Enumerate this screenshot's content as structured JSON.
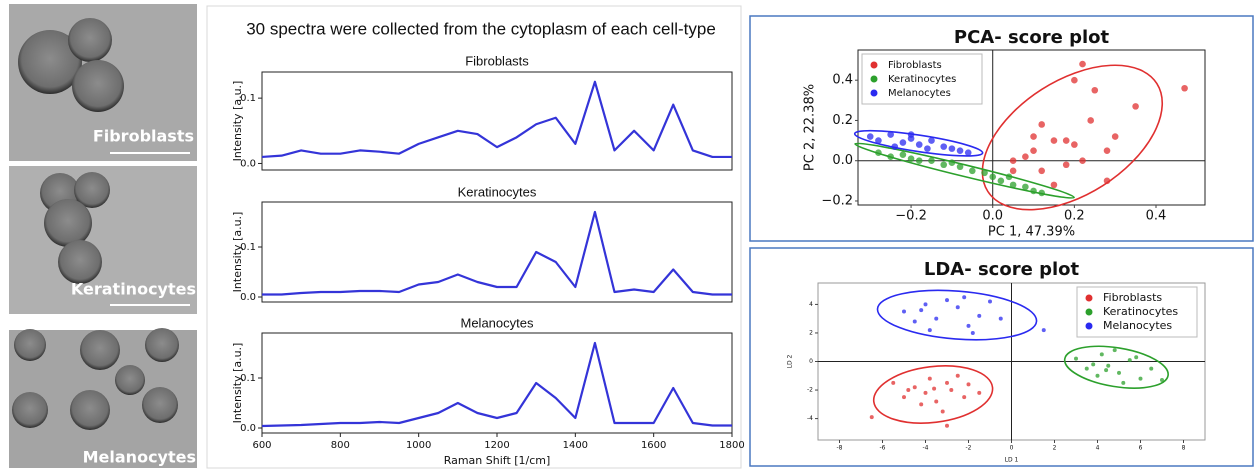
{
  "micrographs": [
    {
      "label": "Fibroblasts"
    },
    {
      "label": "Keratinocytes"
    },
    {
      "label": "Melanocytes"
    }
  ],
  "spectra_heading": "30 spectra were collected from the cytoplasm of each cell-type",
  "chart_data": [
    {
      "type": "line",
      "title": "Fibroblasts",
      "ylabel": "Intensity [a.u.]",
      "xlim": [
        600,
        1800
      ],
      "ylim": [
        -0.01,
        0.14
      ],
      "yticks": [
        {
          "value": 0,
          "label": "0.0"
        },
        0.1
      ],
      "x": [
        600,
        650,
        700,
        750,
        800,
        850,
        900,
        950,
        1000,
        1050,
        1100,
        1150,
        1200,
        1250,
        1300,
        1350,
        1400,
        1450,
        1500,
        1550,
        1600,
        1650,
        1700,
        1750,
        1800
      ],
      "series": [
        {
          "color": "#3434d8",
          "values": [
            0.01,
            0.012,
            0.02,
            0.015,
            0.015,
            0.02,
            0.018,
            0.015,
            0.03,
            0.04,
            0.05,
            0.045,
            0.025,
            0.04,
            0.06,
            0.07,
            0.03,
            0.125,
            0.02,
            0.05,
            0.02,
            0.09,
            0.02,
            0.01,
            0.01
          ]
        }
      ]
    },
    {
      "type": "line",
      "title": "Keratinocytes",
      "ylabel": "Intensity [a.u.]",
      "xlim": [
        600,
        1800
      ],
      "ylim": [
        -0.01,
        0.19
      ],
      "yticks": [
        {
          "value": 0,
          "label": "0.0"
        },
        0.1
      ],
      "x": [
        600,
        650,
        700,
        750,
        800,
        850,
        900,
        950,
        1000,
        1050,
        1100,
        1150,
        1200,
        1250,
        1300,
        1350,
        1400,
        1450,
        1500,
        1550,
        1600,
        1650,
        1700,
        1750,
        1800
      ],
      "series": [
        {
          "color": "#3434d8",
          "values": [
            0.005,
            0.005,
            0.008,
            0.01,
            0.01,
            0.012,
            0.012,
            0.01,
            0.025,
            0.03,
            0.045,
            0.03,
            0.02,
            0.02,
            0.09,
            0.07,
            0.02,
            0.17,
            0.01,
            0.015,
            0.01,
            0.055,
            0.01,
            0.005,
            0.005
          ]
        }
      ]
    },
    {
      "type": "line",
      "title": "Melanocytes",
      "ylabel": "Intensity [a.u.]",
      "xlabel": "Raman Shift [1/cm]",
      "xlim": [
        600,
        1800
      ],
      "ylim": [
        -0.01,
        0.19
      ],
      "yticks": [
        {
          "value": 0,
          "label": "0.0"
        },
        0.1
      ],
      "xticks": [
        600,
        800,
        1000,
        1200,
        1400,
        1600,
        1800
      ],
      "x": [
        600,
        650,
        700,
        750,
        800,
        850,
        900,
        950,
        1000,
        1050,
        1100,
        1150,
        1200,
        1250,
        1300,
        1350,
        1400,
        1450,
        1500,
        1550,
        1600,
        1650,
        1700,
        1750,
        1800
      ],
      "series": [
        {
          "color": "#3434d8",
          "values": [
            0.004,
            0.005,
            0.006,
            0.008,
            0.01,
            0.01,
            0.012,
            0.01,
            0.02,
            0.03,
            0.05,
            0.03,
            0.02,
            0.03,
            0.09,
            0.06,
            0.02,
            0.17,
            0.01,
            0.01,
            0.01,
            0.08,
            0.01,
            0.005,
            0.005
          ]
        }
      ]
    },
    {
      "type": "scatter",
      "title": "PCA- score plot",
      "xlabel": "PC  1, 47.39%",
      "ylabel": "PC 2, 22.38%",
      "legend": "upper-left",
      "xlim": [
        -0.33,
        0.52
      ],
      "ylim": [
        -0.22,
        0.55
      ],
      "xticks": [
        {
          "value": -0.2,
          "label": "−0.2"
        },
        {
          "value": 0,
          "label": "0.0"
        },
        0.2,
        0.4
      ],
      "yticks": [
        {
          "value": -0.2,
          "label": "−0.2"
        },
        {
          "value": 0,
          "label": "0.0"
        },
        0.2,
        0.4
      ],
      "series": [
        {
          "name": "Fibroblasts",
          "color": "#e03030",
          "x": [
            0.05,
            0.1,
            0.12,
            0.15,
            0.18,
            0.2,
            0.22,
            0.25,
            0.28,
            0.3,
            0.12,
            0.2,
            0.24,
            0.08,
            0.15,
            0.35,
            0.47,
            0.22,
            0.18,
            0.28,
            0.1,
            0.05
          ],
          "values": [
            0,
            0.05,
            0.18,
            0.1,
            -0.02,
            0.4,
            0.48,
            0.35,
            0.05,
            0.12,
            -0.05,
            0.08,
            0.2,
            0.02,
            -0.12,
            0.27,
            0.36,
            0,
            0.1,
            -0.1,
            0.12,
            -0.05
          ]
        },
        {
          "name": "Keratinocytes",
          "color": "#2ca02c",
          "x": [
            -0.28,
            -0.25,
            -0.2,
            -0.15,
            -0.12,
            -0.08,
            -0.05,
            0,
            0.02,
            0.05,
            0.08,
            0.1,
            -0.18,
            -0.1,
            -0.02,
            0.12,
            -0.22,
            0.04
          ],
          "values": [
            0.04,
            0.02,
            0.01,
            0,
            -0.02,
            -0.03,
            -0.05,
            -0.08,
            -0.1,
            -0.12,
            -0.13,
            -0.15,
            0,
            -0.01,
            -0.06,
            -0.16,
            0.03,
            -0.08
          ]
        },
        {
          "name": "Melanocytes",
          "color": "#2a2af0",
          "x": [
            -0.3,
            -0.28,
            -0.25,
            -0.22,
            -0.2,
            -0.18,
            -0.15,
            -0.12,
            -0.1,
            -0.08,
            -0.06,
            -0.24,
            -0.16,
            -0.2
          ],
          "values": [
            0.12,
            0.1,
            0.13,
            0.09,
            0.11,
            0.08,
            0.1,
            0.07,
            0.06,
            0.05,
            0.04,
            0.07,
            0.06,
            0.13
          ]
        }
      ]
    },
    {
      "type": "scatter",
      "title": "LDA- score plot",
      "xlabel": "LD 1",
      "ylabel": "LD 2",
      "legend": "upper-right",
      "xlim": [
        -9,
        9
      ],
      "ylim": [
        -5.5,
        5.5
      ],
      "xticks": [
        -8,
        -6,
        -4,
        -2,
        0,
        2,
        4,
        6,
        8
      ],
      "yticks": [
        -4,
        -2,
        0,
        2,
        4
      ],
      "series": [
        {
          "name": "Fibroblasts",
          "color": "#e03030",
          "x": [
            -5.5,
            -5,
            -4.5,
            -4,
            -3.8,
            -3.5,
            -3,
            -2.8,
            -2.5,
            -2,
            -1.5,
            -4.2,
            -3.2,
            -2.2,
            -3.6,
            -4.8,
            -6.5,
            -3
          ],
          "values": [
            -1.5,
            -2.5,
            -1.8,
            -2.2,
            -1.2,
            -2.8,
            -1.5,
            -2,
            -1,
            -1.6,
            -2.2,
            -3,
            -3.5,
            -2.5,
            -1.9,
            -2,
            -3.9,
            -4.5
          ]
        },
        {
          "name": "Keratinocytes",
          "color": "#2ca02c",
          "x": [
            3,
            3.5,
            4,
            4.2,
            4.5,
            5,
            5.5,
            6,
            6.5,
            4.8,
            3.8,
            5.2,
            4.4,
            5.8,
            7
          ],
          "values": [
            0.2,
            -0.5,
            -1,
            0.5,
            -0.3,
            -0.8,
            0.1,
            -1.2,
            -0.5,
            0.8,
            -0.2,
            -1.5,
            -0.6,
            0.3,
            -1.3
          ]
        },
        {
          "name": "Melanocytes",
          "color": "#2a2af0",
          "x": [
            -5,
            -4.5,
            -4,
            -3.5,
            -3,
            -2.5,
            -2,
            -1.5,
            -1,
            -0.5,
            -3.8,
            -2.2,
            -1.8,
            -4.2,
            1.5
          ],
          "values": [
            3.5,
            2.8,
            4,
            3,
            4.3,
            3.8,
            2.5,
            3.2,
            4.2,
            3,
            2.2,
            4.5,
            2,
            3.6,
            2.2
          ]
        }
      ]
    }
  ]
}
